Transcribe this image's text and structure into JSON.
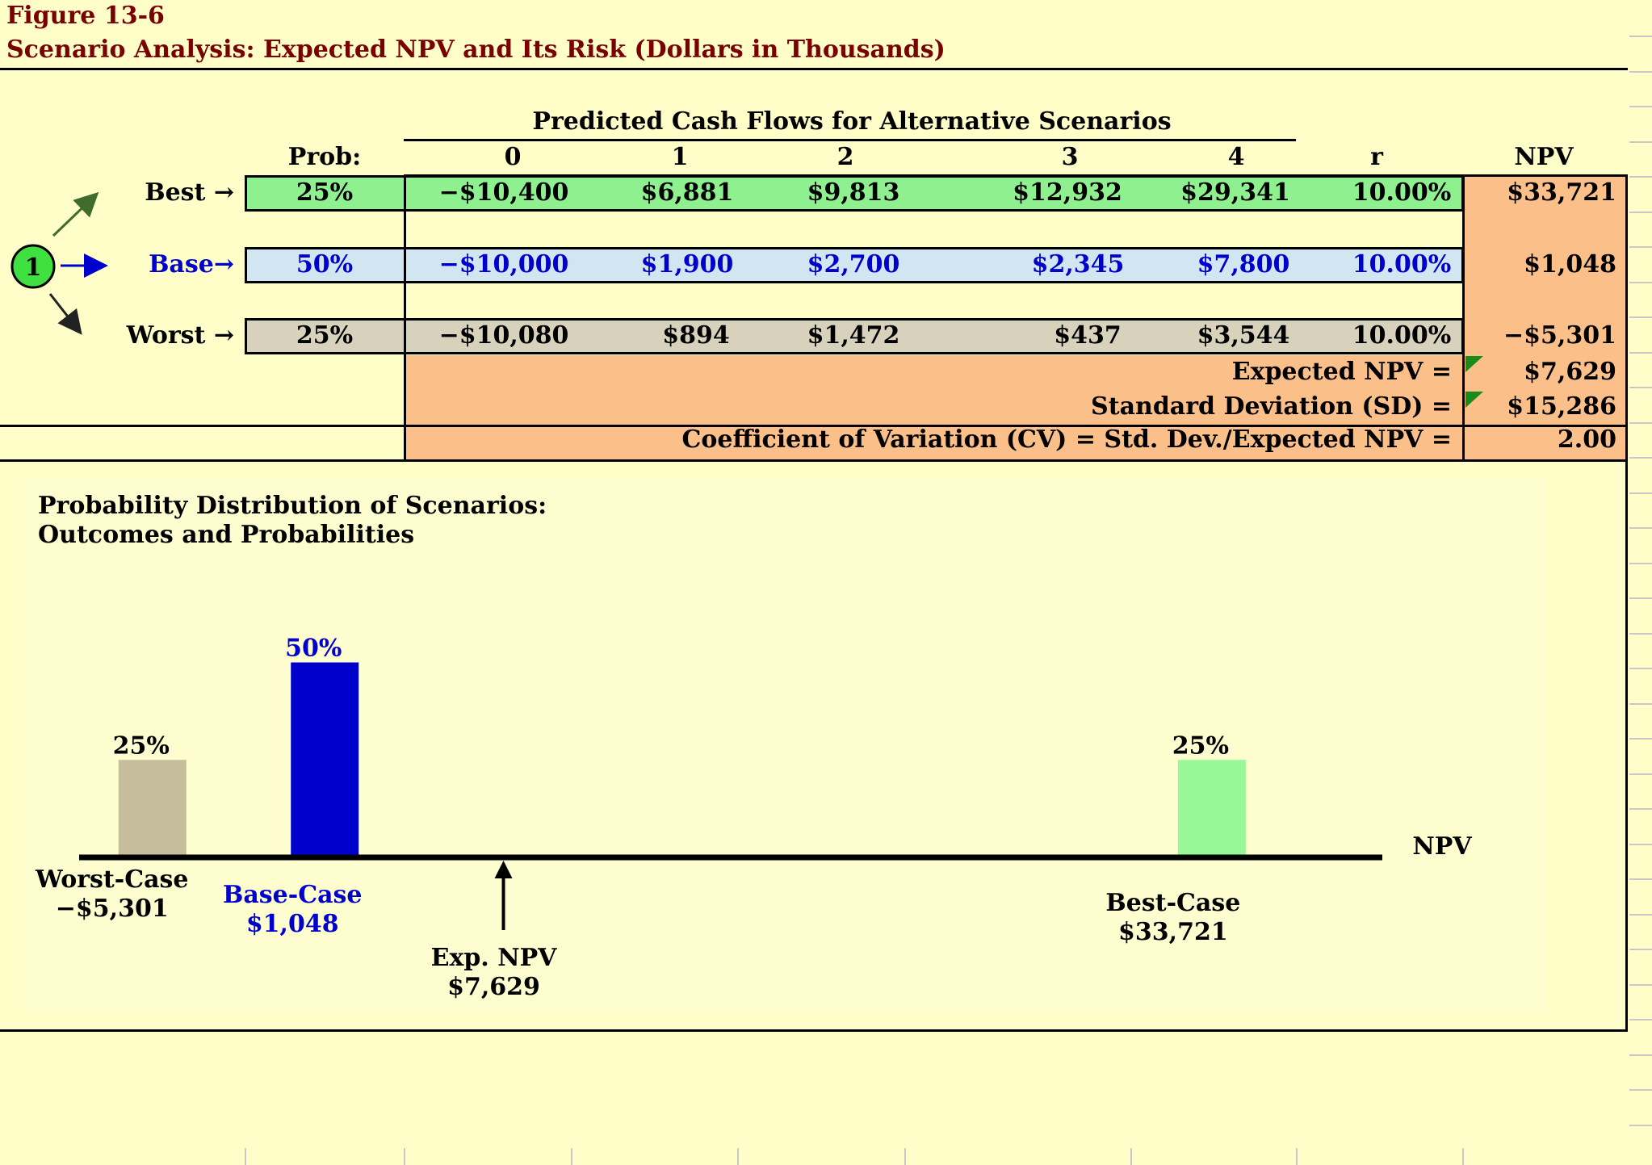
{
  "header": {
    "figure": "Figure 13-6",
    "subtitle": "Scenario Analysis: Expected NPV and Its Risk (Dollars in Thousands)"
  },
  "table": {
    "group_header": "Predicted Cash Flows for Alternative Scenarios",
    "prob_header": "Prob:",
    "years": [
      "0",
      "1",
      "2",
      "3",
      "4"
    ],
    "r_header": "r",
    "npv_header": "NPV",
    "rows": [
      {
        "label": "Best →",
        "prob": "25%",
        "cf": [
          "−$10,400",
          "$6,881",
          "$9,813",
          "$12,932",
          "$29,341"
        ],
        "r": "10.00%",
        "npv": "$33,721",
        "color": "#8ef08e"
      },
      {
        "label": "Base→",
        "prob": "50%",
        "cf": [
          "−$10,000",
          "$1,900",
          "$2,700",
          "$2,345",
          "$7,800"
        ],
        "r": "10.00%",
        "npv": "$1,048",
        "color": "#d2e6f2"
      },
      {
        "label": "Worst →",
        "prob": "25%",
        "cf": [
          "−$10,080",
          "$894",
          "$1,472",
          "$437",
          "$3,544"
        ],
        "r": "10.00%",
        "npv": "−$5,301",
        "color": "#d8d2bc"
      }
    ],
    "marker": "1",
    "expected_npv_label": "Expected NPV =",
    "expected_npv": "$7,629",
    "sd_label": "Standard Deviation  (SD) =",
    "sd": "$15,286",
    "cv_label": "Coefficient of Variation (CV) = Std. Dev./Expected NPV =",
    "cv": "2.00",
    "summary_color": "#fbbf89"
  },
  "chart_data": {
    "type": "bar",
    "title": "Probability Distribution of Scenarios:",
    "subtitle": "Outcomes and Probabilities",
    "xlabel": "NPV",
    "bars": [
      {
        "name": "Worst-Case",
        "npv": -5301,
        "npv_label": "−$5,301",
        "prob": 25,
        "prob_label": "25%",
        "color": "#c6bd9c"
      },
      {
        "name": "Base-Case",
        "npv": 1048,
        "npv_label": "$1,048",
        "prob": 50,
        "prob_label": "50%",
        "color": "#0000cc"
      },
      {
        "name": "Best-Case",
        "npv": 33721,
        "npv_label": "$33,721",
        "prob": 25,
        "prob_label": "25%",
        "color": "#98f898"
      }
    ],
    "expected": {
      "name": "Exp. NPV",
      "npv": 7629,
      "npv_label": "$7,629"
    },
    "ylim": [
      0,
      50
    ]
  }
}
